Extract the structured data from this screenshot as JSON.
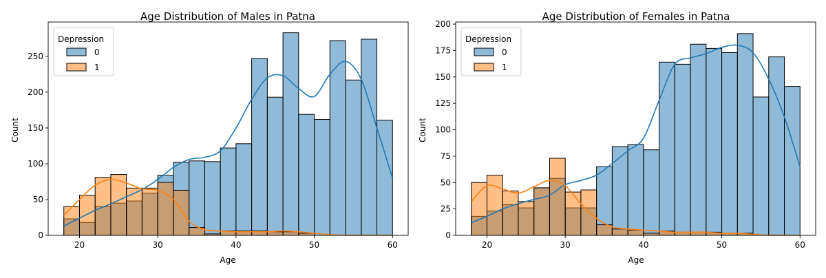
{
  "chart_data": [
    {
      "type": "histogram",
      "title": "Age Distribution of Males in Patna",
      "xlabel": "Age",
      "ylabel": "Count",
      "xlim": [
        16,
        62
      ],
      "ylim": [
        0,
        298
      ],
      "xticks": [
        20,
        30,
        40,
        50,
        60
      ],
      "yticks": [
        0,
        50,
        100,
        150,
        200,
        250
      ],
      "bin_edges": [
        18,
        20,
        22,
        24,
        26,
        28,
        30,
        32,
        34,
        36,
        38,
        40,
        42,
        44,
        46,
        48,
        50,
        52,
        54,
        56,
        58,
        60
      ],
      "legend": {
        "title": "Depression",
        "position": "top-left",
        "labels": [
          "0",
          "1"
        ]
      },
      "series": [
        {
          "name": "0",
          "color": "#1f77b4",
          "values": [
            23,
            18,
            40,
            45,
            48,
            59,
            84,
            102,
            104,
            103,
            122,
            128,
            247,
            193,
            283,
            169,
            162,
            272,
            217,
            274,
            161
          ],
          "kde_x": [
            18,
            20,
            22,
            24,
            26,
            28,
            30,
            32,
            34,
            36,
            38,
            40,
            42,
            44,
            46,
            48,
            50,
            52,
            54,
            56,
            58,
            60
          ],
          "kde_y": [
            13,
            24,
            35,
            44,
            54,
            64,
            78,
            95,
            106,
            109,
            118,
            150,
            190,
            220,
            223,
            205,
            194,
            225,
            243,
            218,
            150,
            80
          ]
        },
        {
          "name": "1",
          "color": "#ff7f0e",
          "values": [
            40,
            56,
            81,
            85,
            66,
            66,
            74,
            63,
            11,
            2,
            6,
            6,
            6,
            5,
            5,
            3,
            0,
            0,
            0,
            0,
            0
          ],
          "kde_x": [
            18,
            20,
            22,
            24,
            26,
            28,
            30,
            32,
            34,
            36,
            38,
            40,
            42,
            44,
            46,
            48,
            50,
            52,
            54,
            56,
            58,
            60
          ],
          "kde_y": [
            28,
            50,
            70,
            78,
            73,
            65,
            63,
            50,
            20,
            8,
            6,
            5,
            5,
            5,
            6,
            5,
            3,
            1,
            0,
            0,
            0,
            0
          ]
        }
      ]
    },
    {
      "type": "histogram",
      "title": "Age Distribution of Females in Patna",
      "xlabel": "Age",
      "ylabel": "Count",
      "xlim": [
        16,
        62
      ],
      "ylim": [
        0,
        202
      ],
      "xticks": [
        20,
        30,
        40,
        50,
        60
      ],
      "yticks": [
        0,
        25,
        50,
        75,
        100,
        125,
        150,
        175,
        200
      ],
      "bin_edges": [
        18,
        20,
        22,
        24,
        26,
        28,
        30,
        32,
        34,
        36,
        38,
        40,
        42,
        44,
        46,
        48,
        50,
        52,
        54,
        56,
        58,
        60
      ],
      "legend": {
        "title": "Depression",
        "position": "top-left",
        "labels": [
          "0",
          "1"
        ]
      },
      "series": [
        {
          "name": "0",
          "color": "#1f77b4",
          "values": [
            18,
            23,
            29,
            26,
            45,
            54,
            26,
            26,
            65,
            84,
            86,
            81,
            164,
            162,
            181,
            177,
            173,
            191,
            131,
            169,
            141
          ],
          "kde_x": [
            18,
            20,
            22,
            24,
            26,
            28,
            30,
            32,
            34,
            36,
            38,
            40,
            42,
            44,
            46,
            48,
            50,
            52,
            54,
            56,
            58,
            60
          ],
          "kde_y": [
            12,
            18,
            25,
            30,
            34,
            38,
            48,
            52,
            57,
            68,
            80,
            92,
            128,
            162,
            168,
            172,
            178,
            180,
            173,
            148,
            112,
            65
          ]
        },
        {
          "name": "1",
          "color": "#ff7f0e",
          "values": [
            50,
            57,
            42,
            32,
            45,
            73,
            41,
            43,
            10,
            6,
            5,
            2,
            4,
            3,
            3,
            3,
            2,
            2,
            0,
            0,
            0
          ],
          "kde_x": [
            18,
            20,
            22,
            24,
            26,
            28,
            30,
            32,
            34,
            36,
            38,
            40,
            42,
            44,
            46,
            48,
            50,
            52,
            54,
            56,
            58,
            60
          ],
          "kde_y": [
            32,
            47,
            44,
            40,
            46,
            52,
            47,
            30,
            16,
            8,
            6,
            5,
            4,
            3,
            3,
            3,
            2,
            2,
            1,
            0,
            0,
            0
          ]
        }
      ]
    }
  ]
}
